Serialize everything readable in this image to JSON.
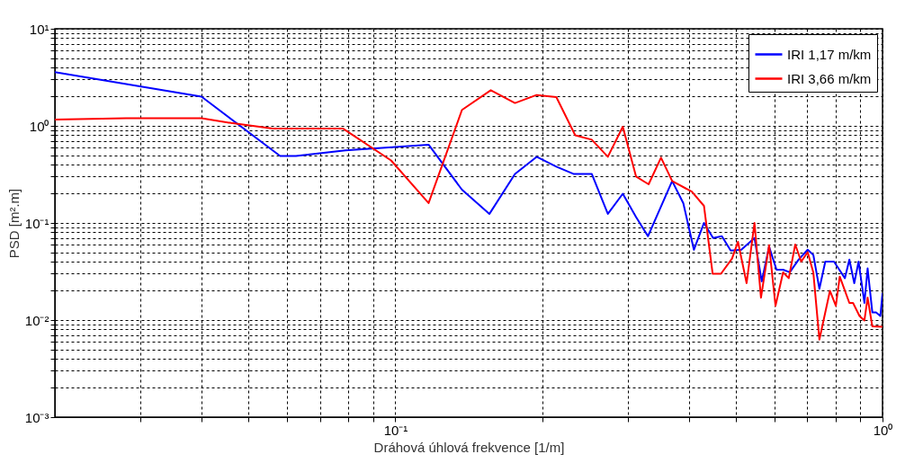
{
  "chart_data": {
    "type": "line",
    "xlabel": "Dráhová úhlová frekvence [1/m]",
    "ylabel": "PSD [m².m]",
    "log": "xy",
    "grid": true,
    "legend": "top right",
    "xlim": [
      0.02,
      1
    ],
    "ylim": [
      0.001,
      10
    ],
    "xticks": [
      {
        "value": 0.03,
        "label": null
      },
      {
        "value": 0.04,
        "label": null
      },
      {
        "value": 0.05,
        "label": null
      },
      {
        "value": 0.06,
        "label": null
      },
      {
        "value": 0.07,
        "label": null
      },
      {
        "value": 0.08,
        "label": null
      },
      {
        "value": 0.09,
        "label": null
      },
      {
        "value": 0.1,
        "label": "10⁻¹"
      },
      {
        "value": 0.2,
        "label": null
      },
      {
        "value": 0.3,
        "label": null
      },
      {
        "value": 0.4,
        "label": null
      },
      {
        "value": 0.5,
        "label": null
      },
      {
        "value": 0.6,
        "label": null
      },
      {
        "value": 0.7,
        "label": null
      },
      {
        "value": 0.8,
        "label": null
      },
      {
        "value": 0.9,
        "label": null
      },
      {
        "value": 1,
        "label": "10⁰"
      }
    ],
    "yticks": [
      {
        "value": 0.001,
        "label": "10⁻³"
      },
      {
        "value": 0.002,
        "label": null
      },
      {
        "value": 0.003,
        "label": null
      },
      {
        "value": 0.004,
        "label": null
      },
      {
        "value": 0.005,
        "label": null
      },
      {
        "value": 0.006,
        "label": null
      },
      {
        "value": 0.007,
        "label": null
      },
      {
        "value": 0.008,
        "label": null
      },
      {
        "value": 0.009,
        "label": null
      },
      {
        "value": 0.01,
        "label": "10⁻²"
      },
      {
        "value": 0.02,
        "label": null
      },
      {
        "value": 0.03,
        "label": null
      },
      {
        "value": 0.04,
        "label": null
      },
      {
        "value": 0.05,
        "label": null
      },
      {
        "value": 0.06,
        "label": null
      },
      {
        "value": 0.07,
        "label": null
      },
      {
        "value": 0.08,
        "label": null
      },
      {
        "value": 0.09,
        "label": null
      },
      {
        "value": 0.1,
        "label": "10⁻¹"
      },
      {
        "value": 0.2,
        "label": null
      },
      {
        "value": 0.3,
        "label": null
      },
      {
        "value": 0.4,
        "label": null
      },
      {
        "value": 0.5,
        "label": null
      },
      {
        "value": 0.6,
        "label": null
      },
      {
        "value": 0.7,
        "label": null
      },
      {
        "value": 0.8,
        "label": null
      },
      {
        "value": 0.9,
        "label": null
      },
      {
        "value": 1,
        "label": "10⁰"
      },
      {
        "value": 2,
        "label": null
      },
      {
        "value": 3,
        "label": null
      },
      {
        "value": 4,
        "label": null
      },
      {
        "value": 5,
        "label": null
      },
      {
        "value": 6,
        "label": null
      },
      {
        "value": 7,
        "label": null
      },
      {
        "value": 8,
        "label": null
      },
      {
        "value": 9,
        "label": null
      },
      {
        "value": 10,
        "label": "10¹"
      }
    ],
    "series": [
      {
        "name": "IRI 1,17 m/km",
        "color": "#0000ff",
        "x": [
          0.02,
          0.04,
          0.058,
          0.0625,
          0.079,
          0.117,
          0.137,
          0.156,
          0.176,
          0.195,
          0.214,
          0.232,
          0.253,
          0.273,
          0.293,
          0.312,
          0.33,
          0.37,
          0.39,
          0.41,
          0.43,
          0.449,
          0.468,
          0.488,
          0.513,
          0.546,
          0.565,
          0.585,
          0.606,
          0.625,
          0.645,
          0.673,
          0.702,
          0.721,
          0.742,
          0.763,
          0.795,
          0.837,
          0.855,
          0.875,
          0.893,
          0.918,
          0.932,
          0.953,
          0.97,
          0.99,
          1.0
        ],
        "values": [
          3.57,
          2.0,
          0.49,
          0.49,
          0.56,
          0.64,
          0.22,
          0.124,
          0.32,
          0.48,
          0.38,
          0.32,
          0.32,
          0.124,
          0.2,
          0.115,
          0.073,
          0.27,
          0.16,
          0.053,
          0.1,
          0.07,
          0.073,
          0.052,
          0.053,
          0.07,
          0.025,
          0.057,
          0.033,
          0.033,
          0.031,
          0.042,
          0.053,
          0.047,
          0.021,
          0.04,
          0.04,
          0.027,
          0.042,
          0.024,
          0.04,
          0.015,
          0.034,
          0.012,
          0.012,
          0.011,
          0.019
        ]
      },
      {
        "name": "IRI 3,66 m/km",
        "color": "#ff0000",
        "x": [
          0.02,
          0.028,
          0.04,
          0.046,
          0.056,
          0.078,
          0.098,
          0.117,
          0.137,
          0.157,
          0.176,
          0.195,
          0.214,
          0.234,
          0.253,
          0.273,
          0.293,
          0.312,
          0.331,
          0.351,
          0.37,
          0.406,
          0.43,
          0.448,
          0.466,
          0.491,
          0.505,
          0.526,
          0.546,
          0.563,
          0.585,
          0.603,
          0.625,
          0.642,
          0.662,
          0.681,
          0.702,
          0.721,
          0.742,
          0.78,
          0.802,
          0.817,
          0.855,
          0.87,
          0.897,
          0.918,
          0.932,
          0.953,
          1.0
        ],
        "values": [
          1.16,
          1.2,
          1.2,
          1.07,
          0.94,
          0.94,
          0.44,
          0.16,
          1.46,
          2.33,
          1.72,
          2.08,
          1.98,
          0.8,
          0.72,
          0.48,
          0.98,
          0.3,
          0.25,
          0.47,
          0.27,
          0.21,
          0.15,
          0.03,
          0.03,
          0.043,
          0.064,
          0.024,
          0.1,
          0.017,
          0.059,
          0.014,
          0.031,
          0.027,
          0.06,
          0.04,
          0.05,
          0.031,
          0.0063,
          0.02,
          0.014,
          0.028,
          0.015,
          0.015,
          0.011,
          0.0099,
          0.017,
          0.0086,
          0.0085
        ]
      }
    ]
  }
}
